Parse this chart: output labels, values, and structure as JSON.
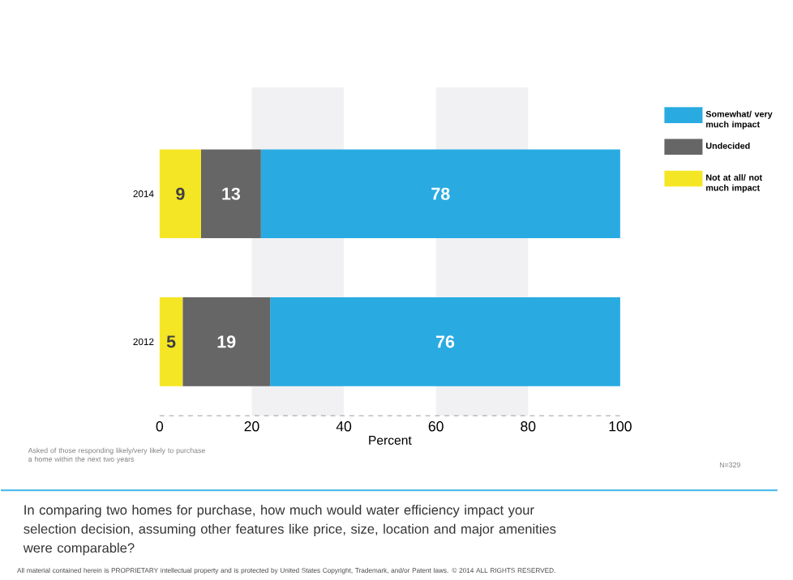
{
  "chart_data": {
    "type": "bar",
    "orientation": "horizontal",
    "stacked": true,
    "data_labels": true,
    "legend": "right",
    "title": "In comparing two homes for purchase, how much would water efficiency impact your selection decision, assuming other features like price, size, location and major amenities were comparable?",
    "xlabel": "Percent",
    "categories": [
      "2014",
      "2012"
    ],
    "series": [
      {
        "name": "Not at all/ not much impact",
        "color": "#f5e625",
        "values": [
          9,
          5
        ]
      },
      {
        "name": "Undecided",
        "color": "#666666",
        "values": [
          13,
          19
        ]
      },
      {
        "name": "Somewhat/ very much impact",
        "color": "#29abe2",
        "values": [
          78,
          76
        ]
      }
    ],
    "xlim": [
      0,
      100
    ],
    "xticks": [
      0,
      20,
      40,
      60,
      80,
      100
    ],
    "bands": [
      {
        "axis": "x",
        "from": 20,
        "to": 40,
        "color": "#f1f1f3"
      },
      {
        "axis": "x",
        "from": 60,
        "to": 80,
        "color": "#f1f1f3"
      }
    ],
    "annotations": [
      "Asked of those responding likely/very likely to purchase a home within the next two years",
      "N=329",
      "All material contained herein is PROPRIETARY intellectual property and is protected by United States Copyright, Trademark, and/or Patent laws. © 2014 ALL RIGHTS RESERVED."
    ]
  }
}
